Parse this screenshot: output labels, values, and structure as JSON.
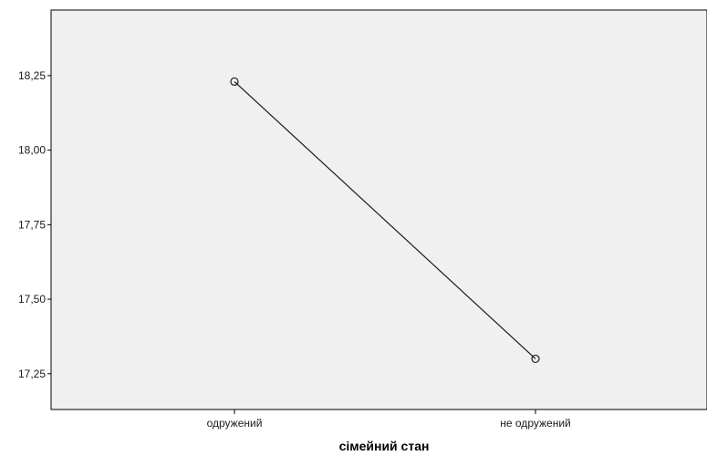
{
  "chart_data": {
    "type": "line",
    "categories": [
      "одружений",
      "не одружений"
    ],
    "values": [
      18.23,
      17.3
    ],
    "xlabel": "сімейний стан",
    "ylabel": "",
    "ylim": [
      17.13,
      18.47
    ],
    "yticks": [
      "18,25",
      "18,00",
      "17,75",
      "17,50",
      "17,25"
    ],
    "ytick_values": [
      18.25,
      18.0,
      17.75,
      17.5,
      17.25
    ],
    "grid": false,
    "marker": "open-circle",
    "colors": {
      "plot_background": "#f0f0f0",
      "line": "#1a1a1a",
      "axis": "#000000"
    }
  }
}
